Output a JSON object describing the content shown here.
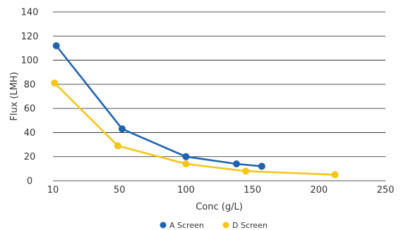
{
  "chart_data": {
    "type": "scatter",
    "title": "",
    "xlabel": "Conc (g/L)",
    "ylabel": "Flux (LMH)",
    "xlim": [
      10,
      250
    ],
    "ylim": [
      0,
      140
    ],
    "x_ticks": [
      10,
      50,
      100,
      150,
      200,
      250
    ],
    "y_ticks": [
      0,
      20,
      40,
      60,
      80,
      100,
      120,
      140
    ],
    "x_tick_labels": [
      "10",
      "50",
      "100",
      "150",
      "200",
      "250"
    ],
    "y_tick_labels": [
      "0",
      "20",
      "40",
      "60",
      "80",
      "100",
      "120",
      "140"
    ],
    "grid": "horizontal",
    "legend": "bottom",
    "series": [
      {
        "name": "A Screen",
        "color": "#1f63b0",
        "x": [
          12,
          52,
          100,
          138,
          157
        ],
        "y": [
          112,
          43,
          20,
          14,
          12
        ]
      },
      {
        "name": "D Screen",
        "color": "#f5c518",
        "x": [
          11,
          49,
          100,
          145,
          212
        ],
        "y": [
          81,
          29,
          14,
          8,
          5
        ]
      }
    ]
  }
}
